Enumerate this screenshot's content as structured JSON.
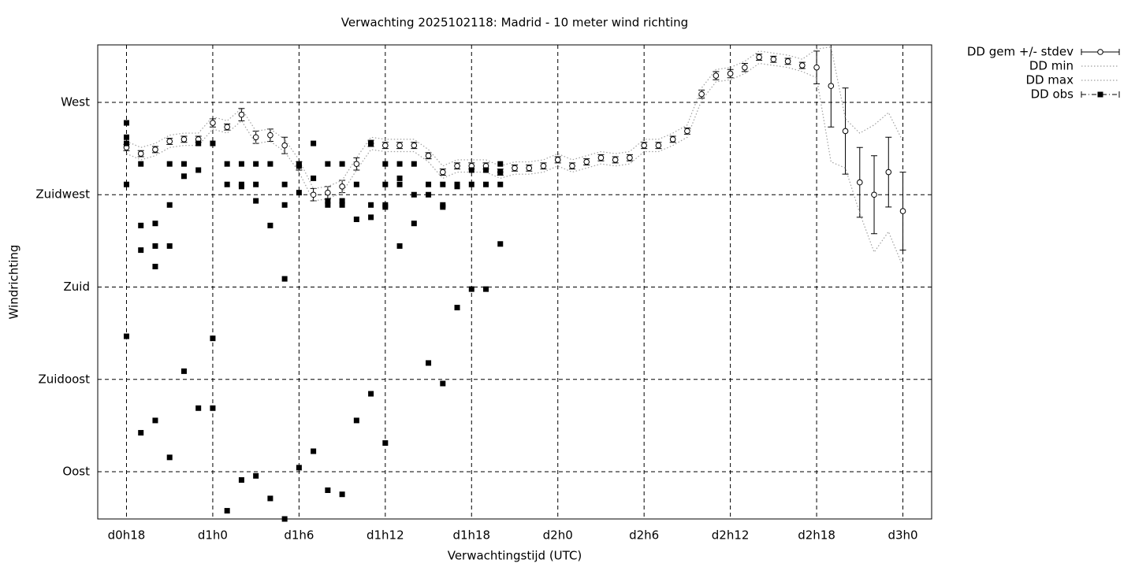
{
  "chart_data": {
    "type": "errorbar-line",
    "title": "Verwachting 2025102118: Madrid - 10 meter wind richting",
    "xlabel": "Verwachtingstijd (UTC)",
    "ylabel": "Windrichting",
    "xlim": [
      16,
      74
    ],
    "ylim": [
      67,
      298
    ],
    "xticks": [
      {
        "value": 18,
        "label": "d0h18"
      },
      {
        "value": 24,
        "label": "d1h0"
      },
      {
        "value": 30,
        "label": "d1h6"
      },
      {
        "value": 36,
        "label": "d1h12"
      },
      {
        "value": 42,
        "label": "d1h18"
      },
      {
        "value": 48,
        "label": "d2h0"
      },
      {
        "value": 54,
        "label": "d2h6"
      },
      {
        "value": 60,
        "label": "d2h12"
      },
      {
        "value": 66,
        "label": "d2h18"
      },
      {
        "value": 72,
        "label": "d3h0"
      }
    ],
    "yticks": [
      {
        "value": 90,
        "label": "Oost"
      },
      {
        "value": 135,
        "label": "Zuidoost"
      },
      {
        "value": 180,
        "label": "Zuid"
      },
      {
        "value": 225,
        "label": "Zuidwest"
      },
      {
        "value": 270,
        "label": "West"
      }
    ],
    "grid": true,
    "legend": "outside-top-right",
    "x": [
      18,
      19,
      20,
      21,
      22,
      23,
      24,
      25,
      26,
      27,
      28,
      29,
      30,
      31,
      32,
      33,
      34,
      35,
      36,
      37,
      38,
      39,
      40,
      41,
      42,
      43,
      44,
      45,
      46,
      47,
      48,
      49,
      50,
      51,
      52,
      53,
      54,
      55,
      56,
      57,
      58,
      59,
      60,
      61,
      62,
      63,
      64,
      65,
      66,
      67,
      68,
      69,
      70,
      71,
      72
    ],
    "series": [
      {
        "name": "DD gem +/- stdev",
        "style": "errorbars",
        "color": "#000000",
        "values": [
          248,
          245,
          247,
          251,
          252,
          252,
          260,
          258,
          264,
          253,
          254,
          249,
          239,
          225,
          226,
          229,
          240,
          250,
          249,
          249,
          249,
          244,
          236,
          239,
          239,
          239,
          236,
          238,
          238,
          239,
          242,
          239,
          241,
          243,
          242,
          243,
          249,
          249,
          252,
          256,
          274,
          283,
          284,
          287,
          292,
          291,
          290,
          288,
          287,
          278,
          256,
          231,
          225,
          236,
          217
        ],
        "errors": [
          1.5,
          1.5,
          1.5,
          1.5,
          1.5,
          1.5,
          2,
          1.5,
          3,
          3,
          3,
          4,
          2,
          3,
          3,
          3,
          3,
          1.5,
          1.5,
          1.5,
          1.5,
          1.5,
          1.5,
          1.5,
          1.5,
          1.5,
          1.5,
          1.5,
          1.5,
          1.5,
          1.5,
          1.5,
          1.5,
          1.5,
          1.5,
          1.5,
          1.5,
          1.5,
          1.5,
          1.5,
          2,
          2,
          2,
          2,
          1.5,
          1.5,
          1.5,
          1.5,
          8,
          20,
          21,
          17,
          19,
          17,
          19
        ]
      },
      {
        "name": "DD min",
        "style": "dotted",
        "color": "#a0a0a0",
        "values": [
          245,
          242,
          244,
          248,
          249,
          249,
          257,
          255,
          261,
          250,
          251,
          246,
          236,
          222,
          223,
          226,
          237,
          247,
          246,
          246,
          246,
          241,
          233,
          236,
          236,
          236,
          233,
          235,
          235,
          236,
          239,
          236,
          238,
          240,
          239,
          240,
          246,
          246,
          249,
          253,
          271,
          280,
          281,
          284,
          289,
          288,
          287,
          285,
          282,
          241,
          238,
          216,
          197,
          207,
          190
        ]
      },
      {
        "name": "DD max",
        "style": "dotted",
        "color": "#a0a0a0",
        "values": [
          251,
          248,
          250,
          254,
          255,
          255,
          263,
          261,
          267,
          256,
          257,
          252,
          242,
          228,
          229,
          232,
          243,
          253,
          252,
          252,
          252,
          247,
          239,
          242,
          242,
          242,
          239,
          241,
          241,
          242,
          245,
          242,
          244,
          246,
          245,
          246,
          252,
          252,
          255,
          259,
          277,
          286,
          287,
          290,
          295,
          294,
          293,
          291,
          296,
          297,
          262,
          255,
          259,
          265,
          251
        ]
      },
      {
        "name": "DD obs",
        "style": "points",
        "color": "#000000",
        "x": [
          18,
          18,
          18,
          18,
          18,
          19,
          19,
          19,
          19,
          20,
          20,
          20,
          20,
          21,
          21,
          21,
          21,
          22,
          22,
          22,
          23,
          23,
          23,
          24,
          24,
          24,
          25,
          25,
          25,
          26,
          26,
          26,
          26,
          27,
          27,
          27,
          27,
          28,
          28,
          28,
          29,
          29,
          29,
          29,
          30,
          30,
          30,
          30,
          31,
          31,
          31,
          32,
          32,
          32,
          32,
          33,
          33,
          33,
          33,
          34,
          34,
          34,
          35,
          35,
          35,
          35,
          36,
          36,
          36,
          36,
          36,
          37,
          37,
          37,
          37,
          38,
          38,
          38,
          39,
          39,
          39,
          40,
          40,
          40,
          40,
          41,
          41,
          41,
          42,
          42,
          42,
          43,
          43,
          43,
          44,
          44,
          44,
          44
        ],
        "values": [
          260,
          253,
          250,
          230,
          156,
          240,
          210,
          198,
          109,
          211,
          200,
          190,
          115,
          240,
          220,
          200,
          97,
          240,
          234,
          139,
          250,
          237,
          121,
          250,
          155,
          121,
          240,
          230,
          71,
          240,
          230,
          229,
          86,
          240,
          230,
          222,
          88,
          240,
          210,
          77,
          230,
          220,
          184,
          67,
          240,
          239,
          226,
          92,
          250,
          233,
          100,
          240,
          222,
          220,
          81,
          240,
          222,
          220,
          79,
          230,
          213,
          115,
          250,
          220,
          214,
          128,
          240,
          230,
          220,
          219,
          104,
          240,
          233,
          230,
          200,
          240,
          225,
          211,
          230,
          225,
          143,
          230,
          220,
          219,
          133,
          230,
          229,
          170,
          237,
          230,
          179,
          237,
          230,
          179,
          240,
          236,
          230,
          201
        ]
      }
    ]
  }
}
